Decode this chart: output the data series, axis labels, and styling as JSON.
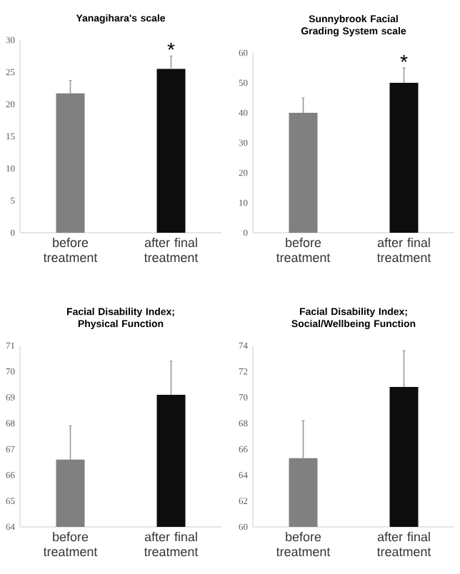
{
  "chart_data": [
    {
      "type": "bar",
      "title": "Yanagihara's scale",
      "categories": [
        "before treatment",
        "after final treatment"
      ],
      "values": [
        21.7,
        25.5
      ],
      "colors": [
        "#808080",
        "#0d0d0d"
      ],
      "errors": [
        [
          21.7,
          23.7
        ],
        [
          25.5,
          27.5
        ]
      ],
      "ylim": [
        0,
        30
      ],
      "yticks": [
        0,
        5,
        10,
        15,
        20,
        25,
        30
      ],
      "annotations": [
        {
          "text": "*",
          "x": "after final treatment",
          "y": 28.5
        }
      ]
    },
    {
      "type": "bar",
      "title": "Sunnybrook Facial Grading System scale",
      "categories": [
        "before treatment",
        "after final treatment"
      ],
      "values": [
        40,
        50
      ],
      "colors": [
        "#808080",
        "#0d0d0d"
      ],
      "errors": [
        [
          40,
          45
        ],
        [
          50,
          55
        ]
      ],
      "ylim": [
        0,
        60
      ],
      "yticks": [
        0,
        10,
        20,
        30,
        40,
        50,
        60
      ],
      "annotations": [
        {
          "text": "*",
          "x": "after final treatment",
          "y": 57
        }
      ]
    },
    {
      "type": "bar",
      "title": "Facial Disability Index; Physical Function",
      "categories": [
        "before treatment",
        "after final treatment"
      ],
      "values": [
        66.6,
        69.1
      ],
      "colors": [
        "#808080",
        "#0d0d0d"
      ],
      "errors": [
        [
          66.6,
          67.9
        ],
        [
          69.1,
          70.4
        ]
      ],
      "ylim": [
        64,
        71
      ],
      "yticks": [
        64,
        65,
        66,
        67,
        68,
        69,
        70,
        71
      ]
    },
    {
      "type": "bar",
      "title": "Facial Disability Index; Social/Wellbeing Function",
      "categories": [
        "before treatment",
        "after final treatment"
      ],
      "values": [
        65.3,
        70.8
      ],
      "colors": [
        "#808080",
        "#0d0d0d"
      ],
      "errors": [
        [
          65.3,
          68.2
        ],
        [
          70.8,
          73.6
        ]
      ],
      "ylim": [
        60,
        74
      ],
      "yticks": [
        60,
        62,
        64,
        66,
        68,
        70,
        72,
        74
      ]
    }
  ]
}
